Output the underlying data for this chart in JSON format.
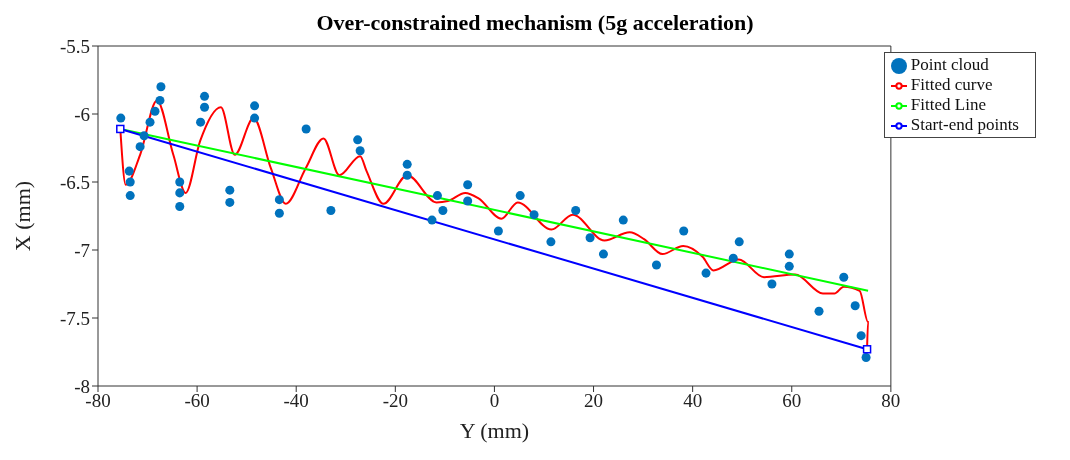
{
  "chart_data": {
    "type": "line",
    "title": "Over-constrained mechanism (5g acceleration)",
    "xlabel": "Y (mm)",
    "ylabel": "X (mm)",
    "xlim": [
      -80,
      80
    ],
    "xticks": [
      -80,
      -60,
      -40,
      -20,
      0,
      20,
      40,
      60,
      80
    ],
    "ylim": [
      -8,
      -5.5
    ],
    "yticks": [
      -8,
      -7.5,
      -7,
      -6.5,
      -6,
      -5.5
    ],
    "grid": false,
    "legend": "top right",
    "series": [
      {
        "name": "Point cloud",
        "type": "scatter",
        "marker": "circle",
        "color": "#0072bd",
        "x": [
          -75.4,
          -73.7,
          -73.5,
          -73.5,
          -71.5,
          -70.7,
          -69.5,
          -68.5,
          -67.5,
          -67.3,
          -63.5,
          -63.5,
          -63.5,
          -59.3,
          -58.5,
          -58.5,
          -53.4,
          -53.4,
          -48.4,
          -48.4,
          -43.4,
          -43.4,
          -38,
          -33,
          -27.6,
          -27.1,
          -17.6,
          -17.6,
          -12.6,
          -11.5,
          -10.4,
          -5.4,
          -5.4,
          0.8,
          5.2,
          8,
          11.4,
          16.4,
          19.3,
          22,
          26,
          32.7,
          38.2,
          42.7,
          48.2,
          49.4,
          56,
          59.5,
          59.5,
          65.5,
          70.5,
          72.8,
          74,
          75
        ],
        "values": [
          -6.03,
          -6.42,
          -6.5,
          -6.6,
          -6.24,
          -6.16,
          -6.06,
          -5.98,
          -5.9,
          -5.8,
          -6.5,
          -6.58,
          -6.68,
          -6.06,
          -5.87,
          -5.95,
          -6.56,
          -6.65,
          -5.94,
          -6.03,
          -6.63,
          -6.73,
          -6.11,
          -6.71,
          -6.19,
          -6.27,
          -6.37,
          -6.45,
          -6.78,
          -6.6,
          -6.71,
          -6.52,
          -6.64,
          -6.86,
          -6.6,
          -6.74,
          -6.94,
          -6.71,
          -6.91,
          -7.03,
          -6.78,
          -7.11,
          -6.86,
          -7.17,
          -7.06,
          -6.94,
          -7.25,
          -7.12,
          -7.03,
          -7.45,
          -7.2,
          -7.41,
          -7.63,
          -7.79
        ]
      },
      {
        "name": "Fitted curve",
        "type": "line",
        "marker": "none",
        "color": "#ff0000",
        "x": [
          -75.5,
          -74.4,
          -71.5,
          -68.1,
          -64.8,
          -62.3,
          -59.4,
          -55.2,
          -52.4,
          -48.6,
          -45.1,
          -42.1,
          -38.1,
          -34.5,
          -31.3,
          -27.1,
          -25.8,
          -22.4,
          -17.6,
          -11.7,
          -9.4,
          -5.9,
          -3.2,
          1.4,
          4.7,
          11.5,
          15.8,
          22.2,
          27.3,
          30.2,
          33.9,
          38.1,
          42,
          44.2,
          49.3,
          54.4,
          60.7,
          66.3,
          68.6,
          70.5,
          73.7,
          75.4,
          75.2
        ],
        "values": [
          -6.11,
          -6.52,
          -6.3,
          -5.9,
          -6.3,
          -6.58,
          -6.2,
          -5.95,
          -6.3,
          -6.03,
          -6.4,
          -6.66,
          -6.4,
          -6.18,
          -6.45,
          -6.31,
          -6.42,
          -6.66,
          -6.45,
          -6.65,
          -6.64,
          -6.58,
          -6.62,
          -6.77,
          -6.65,
          -6.85,
          -6.74,
          -6.93,
          -6.87,
          -6.92,
          -7.03,
          -6.97,
          -7.05,
          -7.15,
          -7.07,
          -7.2,
          -7.18,
          -7.32,
          -7.32,
          -7.27,
          -7.3,
          -7.53,
          -7.73
        ]
      },
      {
        "name": "Fitted Line",
        "type": "line",
        "marker": "none",
        "color": "#00ff00",
        "x": [
          -75.5,
          75.4
        ],
        "values": [
          -6.11,
          -7.3
        ]
      },
      {
        "name": "Start-end points",
        "type": "line",
        "marker": "square",
        "color": "#0000ff",
        "x": [
          -75.5,
          75.2
        ],
        "values": [
          -6.11,
          -7.73
        ]
      }
    ]
  }
}
